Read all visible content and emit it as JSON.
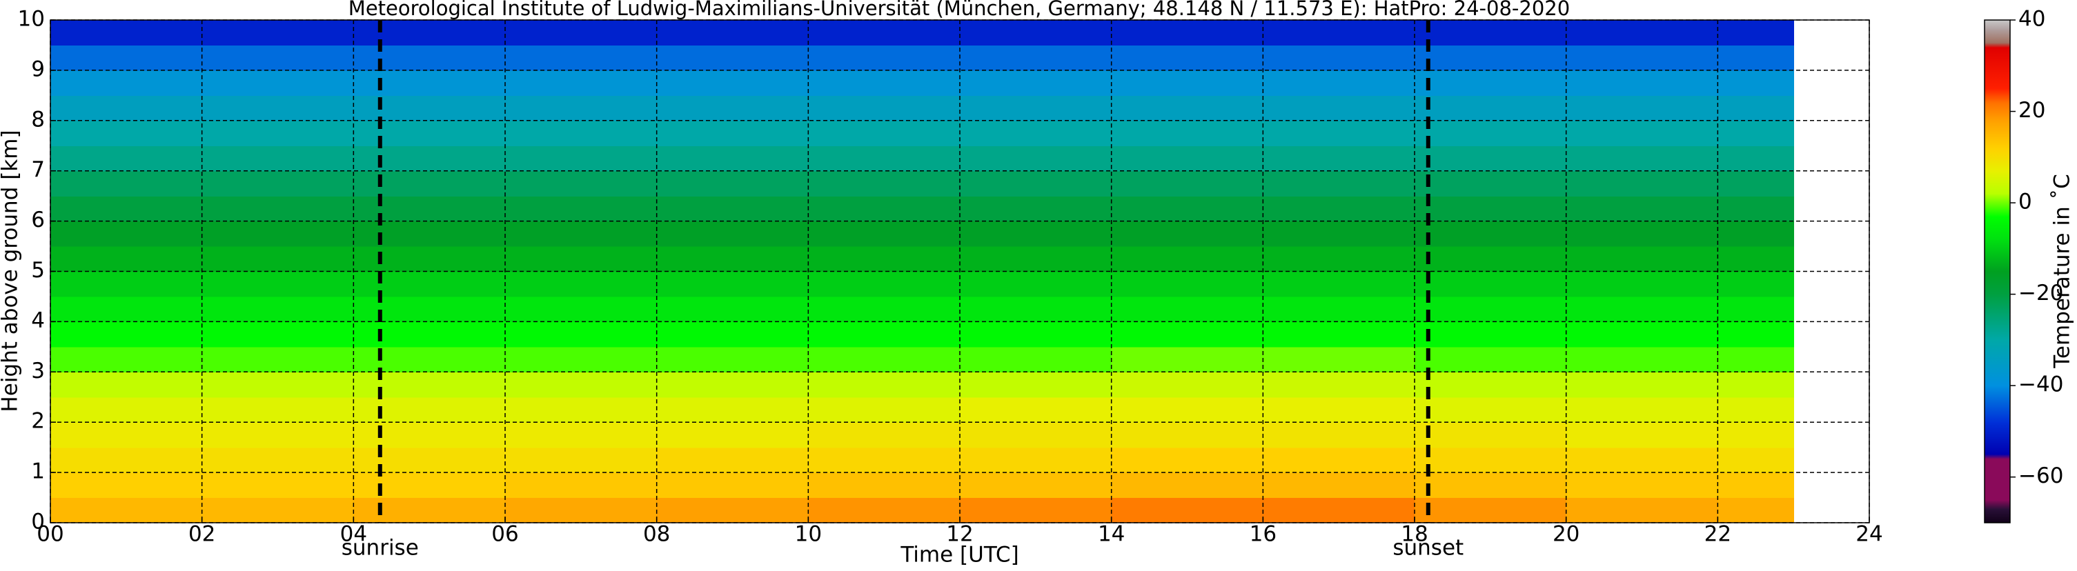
{
  "chart_data": {
    "type": "heatmap",
    "title": "Meteorological Institute of Ludwig-Maximilians-Universität (München, Germany; 48.148 N / 11.573 E):    HatPro: 24-08-2020",
    "x_label": "Time [UTC]",
    "y_label": "Height above ground [km]",
    "colorbar_label": "Temperature in ˚C",
    "x_edges": [
      0,
      2,
      4,
      6,
      8,
      10,
      12,
      14,
      16,
      18,
      20,
      22,
      23
    ],
    "y_edges": [
      0,
      0.5,
      1,
      1.5,
      2,
      2.5,
      3,
      3.5,
      4,
      4.5,
      5,
      5.5,
      6,
      6.5,
      7,
      7.5,
      8,
      8.5,
      9,
      9.5,
      10
    ],
    "values": [
      [
        15,
        15,
        16,
        17,
        18,
        19,
        20,
        21,
        21,
        19,
        17,
        16
      ],
      [
        12,
        12,
        12,
        13,
        13,
        14,
        14,
        15,
        15,
        14,
        13,
        13
      ],
      [
        10,
        10,
        10,
        10,
        11,
        11,
        11,
        12,
        12,
        11,
        11,
        10
      ],
      [
        8,
        8,
        8,
        8,
        8,
        9,
        9,
        9,
        9,
        9,
        8,
        8
      ],
      [
        6,
        6,
        6,
        6,
        6,
        6,
        7,
        7,
        7,
        6,
        6,
        6
      ],
      [
        3,
        3,
        3,
        3,
        3,
        3,
        3,
        4,
        4,
        3,
        3,
        3
      ],
      [
        -1,
        -1,
        -1,
        -1,
        -1,
        -1,
        -1,
        0,
        0,
        -1,
        -1,
        -1
      ],
      [
        -4,
        -4,
        -4,
        -4,
        -4,
        -4,
        -4,
        -4,
        -4,
        -4,
        -4,
        -4
      ],
      [
        -7,
        -7,
        -7,
        -7,
        -7,
        -7,
        -7,
        -7,
        -7,
        -7,
        -7,
        -7
      ],
      [
        -10,
        -10,
        -10,
        -10,
        -10,
        -10,
        -10,
        -10,
        -10,
        -10,
        -10,
        -10
      ],
      [
        -13,
        -13,
        -13,
        -13,
        -13,
        -13,
        -13,
        -13,
        -13,
        -13,
        -13,
        -13
      ],
      [
        -16,
        -16,
        -16,
        -16,
        -16,
        -16,
        -16,
        -16,
        -16,
        -16,
        -16,
        -16
      ],
      [
        -20,
        -20,
        -20,
        -20,
        -20,
        -20,
        -20,
        -20,
        -20,
        -20,
        -20,
        -20
      ],
      [
        -23,
        -23,
        -23,
        -23,
        -23,
        -23,
        -23,
        -23,
        -23,
        -23,
        -23,
        -23
      ],
      [
        -27,
        -27,
        -27,
        -27,
        -27,
        -27,
        -27,
        -27,
        -27,
        -27,
        -27,
        -27
      ],
      [
        -30,
        -30,
        -30,
        -30,
        -30,
        -30,
        -30,
        -30,
        -30,
        -30,
        -30,
        -30
      ],
      [
        -34,
        -34,
        -34,
        -34,
        -34,
        -34,
        -34,
        -34,
        -34,
        -34,
        -34,
        -34
      ],
      [
        -38,
        -38,
        -38,
        -38,
        -38,
        -38,
        -38,
        -38,
        -38,
        -38,
        -38,
        -38
      ],
      [
        -43,
        -43,
        -43,
        -43,
        -43,
        -43,
        -43,
        -43,
        -43,
        -43,
        -43,
        -43
      ],
      [
        -50,
        -50,
        -50,
        -50,
        -50,
        -50,
        -50,
        -50,
        -50,
        -50,
        -50,
        -50
      ]
    ],
    "xlim": [
      0,
      24
    ],
    "ylim": [
      0,
      10
    ],
    "xticks": [
      {
        "value": 0,
        "label": "00"
      },
      {
        "value": 2,
        "label": "02"
      },
      {
        "value": 4,
        "label": "04"
      },
      {
        "value": 6,
        "label": "06"
      },
      {
        "value": 8,
        "label": "08"
      },
      10,
      12,
      14,
      16,
      18,
      20,
      22,
      24
    ],
    "yticks": [
      0,
      1,
      2,
      3,
      4,
      5,
      6,
      7,
      8,
      9,
      10
    ],
    "grid": true,
    "clim": [
      -70,
      40
    ],
    "cticks": [
      {
        "value": -60,
        "label": "−60"
      },
      {
        "value": -40,
        "label": "−40"
      },
      {
        "value": -20,
        "label": "−20"
      },
      0,
      20,
      40
    ],
    "colormap": [
      {
        "value": -70,
        "color": "#100018"
      },
      {
        "value": -67,
        "color": "#2a1038"
      },
      {
        "value": -65,
        "color": "#8a0a5a"
      },
      {
        "value": -56,
        "color": "#8a0a5a"
      },
      {
        "value": -55,
        "color": "#0000b0"
      },
      {
        "value": -48,
        "color": "#0030d8"
      },
      {
        "value": -40,
        "color": "#0090e0"
      },
      {
        "value": -30,
        "color": "#00a8a8"
      },
      {
        "value": -20,
        "color": "#00a040"
      },
      {
        "value": -15,
        "color": "#00a020"
      },
      {
        "value": -8,
        "color": "#00e010"
      },
      {
        "value": -3,
        "color": "#00ff00"
      },
      {
        "value": 2,
        "color": "#b8ff00"
      },
      {
        "value": 7,
        "color": "#e8f000"
      },
      {
        "value": 12,
        "color": "#ffd000"
      },
      {
        "value": 18,
        "color": "#ffa000"
      },
      {
        "value": 22,
        "color": "#ff7000"
      },
      {
        "value": 25,
        "color": "#ff2000"
      },
      {
        "value": 34,
        "color": "#e00000"
      },
      {
        "value": 35,
        "color": "#a07060"
      },
      {
        "value": 38,
        "color": "#b0a0a0"
      },
      {
        "value": 40,
        "color": "#c8c8c8"
      }
    ],
    "annotations": [
      {
        "text": "sunrise",
        "x": 4.35
      },
      {
        "text": "sunset",
        "x": 18.18
      }
    ]
  }
}
